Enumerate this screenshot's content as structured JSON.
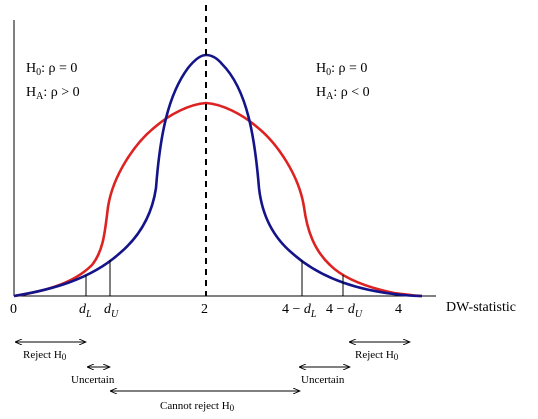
{
  "hypotheses": {
    "left": {
      "null": {
        "prefix": "H",
        "sub": "0",
        "rest": ": ρ = 0"
      },
      "alt": {
        "prefix": "H",
        "sub": "A",
        "rest": ": ρ > 0"
      }
    },
    "right": {
      "null": {
        "prefix": "H",
        "sub": "0",
        "rest": ": ρ = 0"
      },
      "alt": {
        "prefix": "H",
        "sub": "A",
        "rest": ": ρ < 0"
      }
    }
  },
  "axis": {
    "label": "DW-statistic",
    "ticks": {
      "zero": "0",
      "two": "2",
      "four": "4",
      "dL": {
        "main": "d",
        "sub": "L"
      },
      "dU": {
        "main": "d",
        "sub": "U"
      },
      "fourMinusDL": {
        "prefix": "4 − ",
        "main": "d",
        "sub": "L"
      },
      "fourMinusDU": {
        "prefix": "4 − ",
        "main": "d",
        "sub": "U"
      }
    }
  },
  "regions": {
    "rejectLeft": {
      "text": "Reject H",
      "sub": "0"
    },
    "uncertainLeft": {
      "text": "Uncertain"
    },
    "cannotReject": {
      "text": "Cannot reject H",
      "sub": "0"
    },
    "uncertainRight": {
      "text": "Uncertain"
    },
    "rejectRight": {
      "text": "Reject H",
      "sub": "0"
    }
  },
  "colors": {
    "redCurve": "#dd2222",
    "blueCurve": "#14148a",
    "axis": "#000000"
  }
}
